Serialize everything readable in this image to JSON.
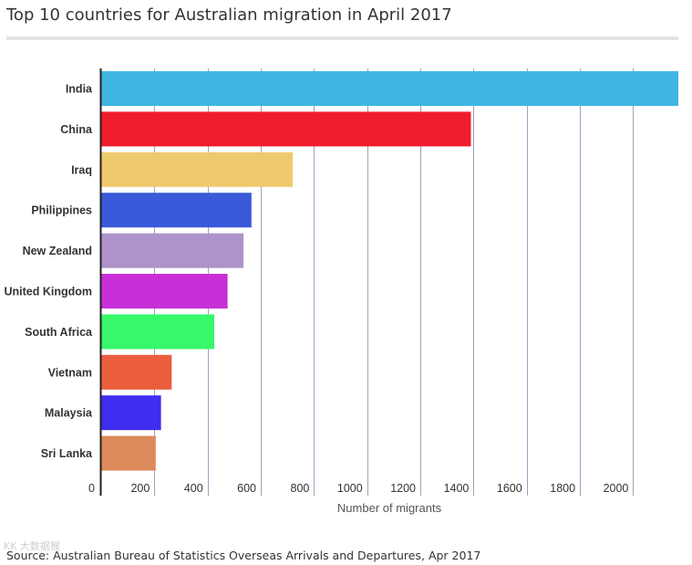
{
  "chart_data": {
    "type": "bar",
    "orientation": "horizontal",
    "title": "Top 10 countries for Australian migration in April 2017",
    "xlabel": "Number of migrants",
    "ylabel": "",
    "categories": [
      "India",
      "China",
      "Iraq",
      "Philippines",
      "New Zealand",
      "United Kingdom",
      "South Africa",
      "Vietnam",
      "Malaysia",
      "Sri Lanka"
    ],
    "values": [
      2170,
      1390,
      720,
      565,
      535,
      475,
      425,
      265,
      225,
      205
    ],
    "colors": [
      "#3fb6e2",
      "#ef1c2c",
      "#efc96d",
      "#3a5ad9",
      "#ad93c9",
      "#c92fd6",
      "#37f76b",
      "#eb5d3c",
      "#3f2df0",
      "#dc8a5a"
    ],
    "xlim": [
      0,
      2170
    ],
    "xticks": [
      0,
      200,
      400,
      600,
      800,
      1000,
      1200,
      1400,
      1600,
      1800,
      2000
    ],
    "grid": true,
    "legend": "none",
    "source": "Source: Australian Bureau of Statistics Overseas Arrivals and Departures, Apr 2017"
  },
  "watermark": "KK 大数据猴"
}
